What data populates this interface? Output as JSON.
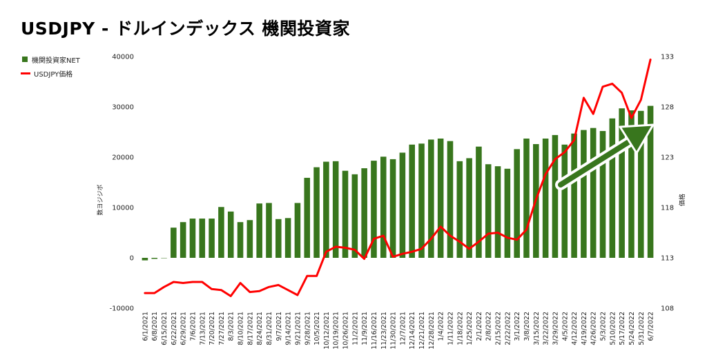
{
  "chart_data": {
    "type": "bar",
    "title": "USDJPY - ドルインデックス 機関投資家",
    "categories": [
      "6/1/2021",
      "6/8/2021",
      "6/15/2021",
      "6/22/2021",
      "6/29/2021",
      "7/6/2021",
      "7/13/2021",
      "7/20/2021",
      "7/27/2021",
      "8/3/2021",
      "8/10/2021",
      "8/17/2021",
      "8/24/2021",
      "8/31/2021",
      "9/7/2021",
      "9/14/2021",
      "9/21/2021",
      "9/28/2021",
      "10/5/2021",
      "10/12/2021",
      "10/19/2021",
      "10/26/2021",
      "11/2/2021",
      "11/9/2021",
      "11/16/2021",
      "11/23/2021",
      "11/30/2021",
      "12/7/2021",
      "12/14/2021",
      "12/21/2021",
      "12/28/2021",
      "1/4/2022",
      "1/11/2022",
      "1/18/2022",
      "1/25/2022",
      "2/1/2022",
      "2/8/2022",
      "2/15/2022",
      "2/22/2022",
      "3/1/2022",
      "3/8/2022",
      "3/15/2022",
      "3/22/2022",
      "3/29/2022",
      "4/5/2022",
      "4/12/2022",
      "4/19/2022",
      "4/26/2022",
      "5/3/2022",
      "5/10/2022",
      "5/17/2022",
      "5/24/2022",
      "5/31/2022",
      "6/7/2022"
    ],
    "series": [
      {
        "name": "機関投資家NET",
        "axis": "left",
        "kind": "bar",
        "color": "#38761d",
        "values": [
          -500,
          -200,
          0,
          6000,
          7100,
          7800,
          7800,
          7800,
          10100,
          9200,
          7100,
          7500,
          10800,
          10900,
          7700,
          7900,
          10900,
          15900,
          18000,
          19100,
          19200,
          17300,
          16600,
          17800,
          19300,
          20100,
          19600,
          20900,
          22500,
          22700,
          23500,
          23700,
          23200,
          19200,
          19800,
          22100,
          18600,
          18200,
          17700,
          21600,
          23700,
          22600,
          23700,
          24400,
          22500,
          24700,
          25400,
          25800,
          25200,
          27700,
          29700,
          29300,
          29200,
          30200
        ]
      },
      {
        "name": "USDJPY価格",
        "axis": "right",
        "kind": "line",
        "color": "#ff0000",
        "values": [
          109.5,
          109.5,
          110.1,
          110.6,
          110.5,
          110.6,
          110.6,
          109.9,
          109.8,
          109.2,
          110.5,
          109.6,
          109.7,
          110.1,
          110.3,
          109.8,
          109.3,
          111.2,
          111.2,
          113.6,
          114.1,
          114.0,
          113.8,
          112.9,
          114.9,
          115.2,
          113.1,
          113.4,
          113.6,
          113.9,
          114.9,
          116.1,
          115.2,
          114.6,
          113.9,
          114.6,
          115.4,
          115.5,
          115.0,
          114.8,
          115.8,
          118.8,
          121.3,
          122.8,
          123.5,
          124.7,
          128.9,
          127.3,
          130.0,
          130.3,
          129.4,
          126.9,
          128.7,
          132.7
        ]
      }
    ],
    "y_left": {
      "label": "数ヨジジボ",
      "min": -10000,
      "max": 40000,
      "ticks": [
        -10000,
        0,
        10000,
        20000,
        30000,
        40000
      ]
    },
    "y_right": {
      "label": "価格",
      "min": 108,
      "max": 133,
      "ticks": [
        108,
        113,
        118,
        123,
        128,
        133
      ]
    },
    "legend_position": "top-left",
    "grid": false,
    "annotation": "green arrow indicating upward trend"
  },
  "legend": {
    "items": [
      {
        "label": "機関投資家NET",
        "color": "#38761d"
      },
      {
        "label": "USDJPY価格",
        "color": "#ff0000"
      }
    ]
  }
}
